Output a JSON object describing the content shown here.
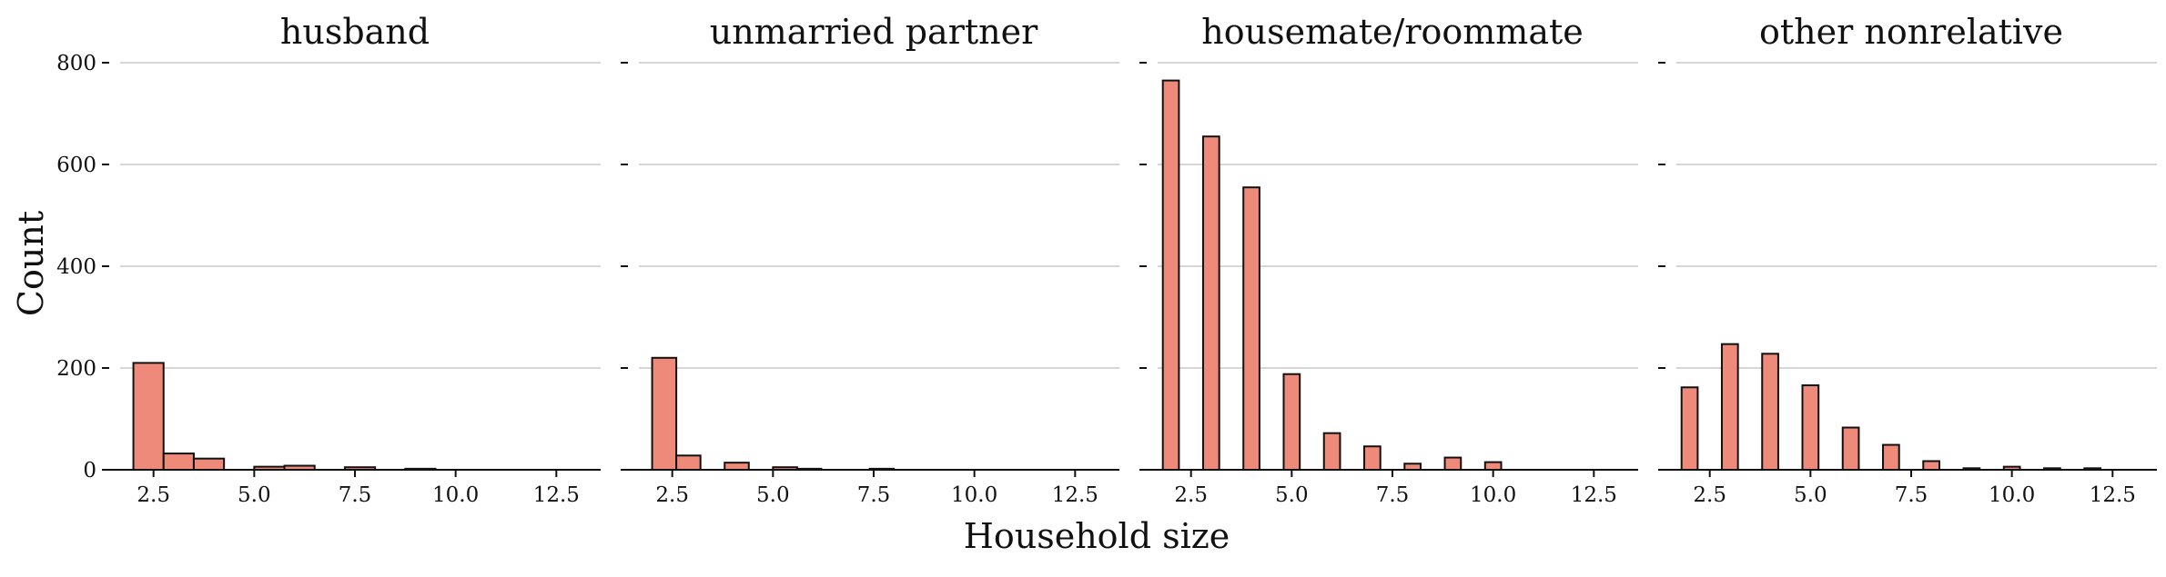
{
  "colors": {
    "bar_fill": "#ee8a7a",
    "bar_stroke": "#111111",
    "grid": "#c8c8c8",
    "axis": "#111111"
  },
  "chart_data": {
    "type": "bar",
    "shared_x_label": "Household size",
    "shared_y_label": "Count",
    "grid": "horizontal",
    "y_ticks": [
      0,
      200,
      400,
      600,
      800
    ],
    "x_ticks": [
      "2.5",
      "5.0",
      "7.5",
      "10.0",
      "12.5"
    ],
    "xlim": [
      1.4,
      13.6
    ],
    "ylim": [
      0,
      800
    ],
    "facets": [
      {
        "title": "husband",
        "bars": [
          {
            "x_start": 2.0,
            "x_end": 2.75,
            "value": 210
          },
          {
            "x_start": 2.75,
            "x_end": 3.5,
            "value": 32
          },
          {
            "x_start": 3.5,
            "x_end": 4.25,
            "value": 22
          },
          {
            "x_start": 5.0,
            "x_end": 5.75,
            "value": 6
          },
          {
            "x_start": 5.75,
            "x_end": 6.5,
            "value": 8
          },
          {
            "x_start": 7.25,
            "x_end": 8.0,
            "value": 5
          },
          {
            "x_start": 8.75,
            "x_end": 9.5,
            "value": 2
          }
        ]
      },
      {
        "title": "unmarried partner",
        "bars": [
          {
            "x_start": 2.0,
            "x_end": 2.6,
            "value": 220
          },
          {
            "x_start": 2.6,
            "x_end": 3.2,
            "value": 28
          },
          {
            "x_start": 3.8,
            "x_end": 4.4,
            "value": 14
          },
          {
            "x_start": 5.0,
            "x_end": 5.6,
            "value": 5
          },
          {
            "x_start": 5.6,
            "x_end": 6.2,
            "value": 2
          },
          {
            "x_start": 7.4,
            "x_end": 8.0,
            "value": 2
          }
        ]
      },
      {
        "title": "housemate/roommate",
        "bars": [
          {
            "x_start": 1.8,
            "x_end": 2.2,
            "value": 765
          },
          {
            "x_start": 2.8,
            "x_end": 3.2,
            "value": 655
          },
          {
            "x_start": 3.8,
            "x_end": 4.2,
            "value": 555
          },
          {
            "x_start": 4.8,
            "x_end": 5.2,
            "value": 188
          },
          {
            "x_start": 5.8,
            "x_end": 6.2,
            "value": 72
          },
          {
            "x_start": 6.8,
            "x_end": 7.2,
            "value": 46
          },
          {
            "x_start": 7.8,
            "x_end": 8.2,
            "value": 12
          },
          {
            "x_start": 8.8,
            "x_end": 9.2,
            "value": 24
          },
          {
            "x_start": 9.8,
            "x_end": 10.2,
            "value": 15
          }
        ]
      },
      {
        "title": "other nonrelative",
        "bars": [
          {
            "x_start": 1.8,
            "x_end": 2.2,
            "value": 162
          },
          {
            "x_start": 2.8,
            "x_end": 3.2,
            "value": 247
          },
          {
            "x_start": 3.8,
            "x_end": 4.2,
            "value": 228
          },
          {
            "x_start": 4.8,
            "x_end": 5.2,
            "value": 166
          },
          {
            "x_start": 5.8,
            "x_end": 6.2,
            "value": 83
          },
          {
            "x_start": 6.8,
            "x_end": 7.2,
            "value": 49
          },
          {
            "x_start": 7.8,
            "x_end": 8.2,
            "value": 17
          },
          {
            "x_start": 8.8,
            "x_end": 9.2,
            "value": 3
          },
          {
            "x_start": 9.8,
            "x_end": 10.2,
            "value": 6
          },
          {
            "x_start": 10.8,
            "x_end": 11.2,
            "value": 3
          },
          {
            "x_start": 11.8,
            "x_end": 12.2,
            "value": 3
          }
        ]
      }
    ]
  }
}
